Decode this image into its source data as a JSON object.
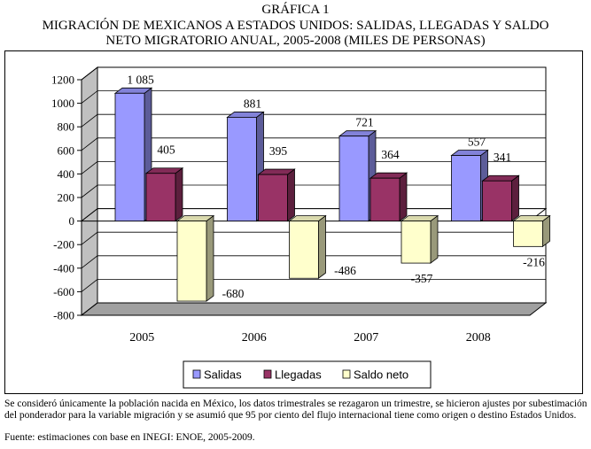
{
  "title_line1": "GRÁFICA 1",
  "title_line2": "MIGRACIÓN DE MEXICANOS A ESTADOS UNIDOS: SALIDAS, LLEGADAS Y SALDO",
  "title_line3": "NETO MIGRATORIO ANUAL, 2005-2008 (MILES DE PERSONAS)",
  "footnote": "Se consideró únicamente la población nacida en México, los datos trimestrales se rezagaron un trimestre, se hicieron ajustes por subestimación del ponderador para la variable migración y se asumió que 95 por ciento del flujo internacional tiene como origen o destino Estados Unidos.",
  "source": "Fuente: estimaciones con base en INEGI: ENOE, 2005-2009.",
  "colors": {
    "salidas": "#9999ff",
    "llegadas": "#993366",
    "saldo": "#ffffcc"
  },
  "chart_data": {
    "type": "bar",
    "categories": [
      "2005",
      "2006",
      "2007",
      "2008"
    ],
    "series": [
      {
        "name": "Salidas",
        "values": [
          1085,
          881,
          721,
          557
        ],
        "labels": [
          "1 085",
          "881",
          "721",
          "557"
        ]
      },
      {
        "name": "Llegadas",
        "values": [
          405,
          395,
          364,
          341
        ],
        "labels": [
          "405",
          "395",
          "364",
          "341"
        ]
      },
      {
        "name": "Saldo neto",
        "values": [
          -680,
          -486,
          -357,
          -216
        ],
        "labels": [
          "-680",
          "-486",
          "-357",
          "-216"
        ]
      }
    ],
    "ylim": [
      -800,
      1200
    ],
    "yticks": [
      -800,
      -600,
      -400,
      -200,
      0,
      200,
      400,
      600,
      800,
      1000,
      1200
    ],
    "ytick_labels": [
      "-800",
      "-600",
      "-400",
      "-200",
      "0",
      "200",
      "400",
      "600",
      "800",
      "1000",
      "1200"
    ],
    "grid": true,
    "legend_position": "bottom"
  }
}
